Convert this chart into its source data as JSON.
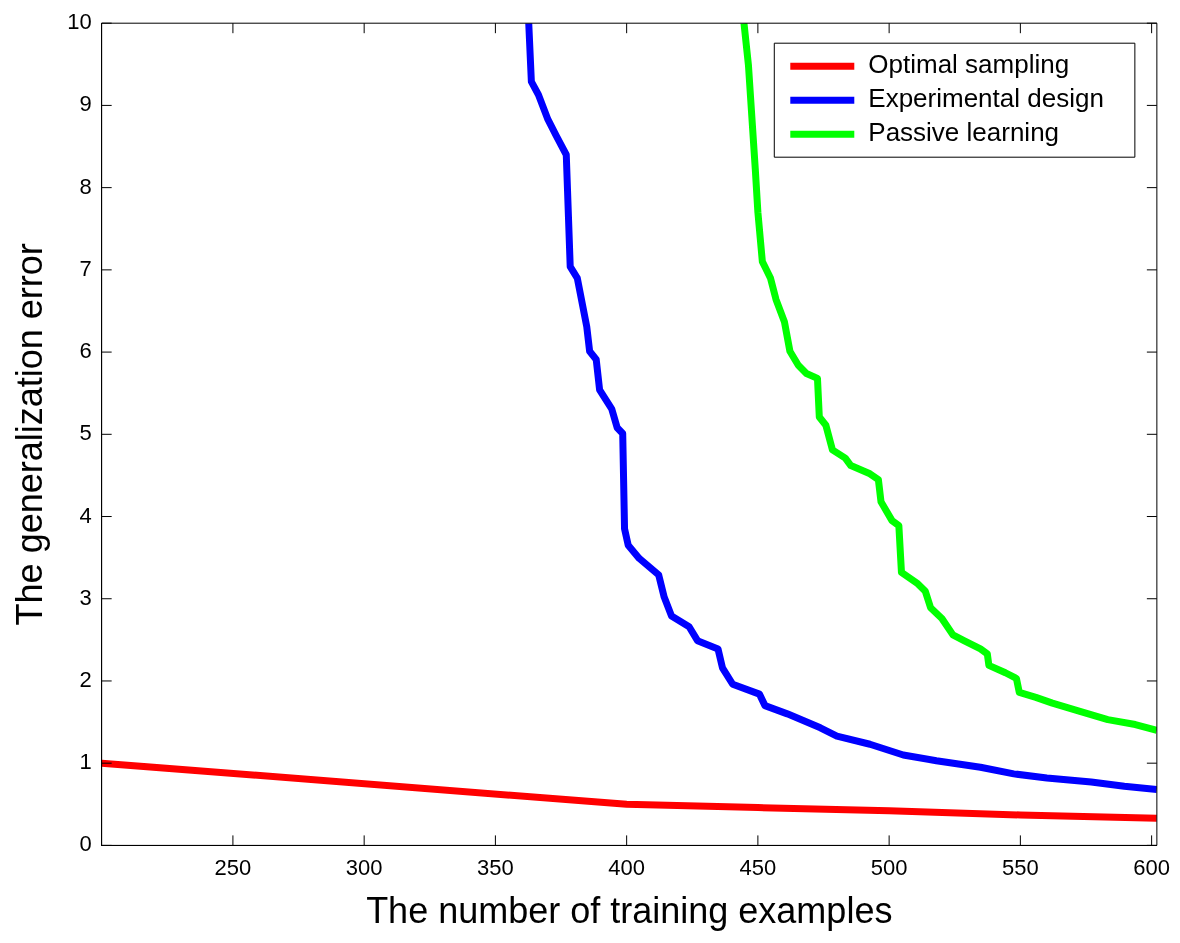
{
  "chart_data": {
    "type": "line",
    "xlabel": "The number of training examples",
    "ylabel": "The generalization error",
    "xlim": [
      200,
      602
    ],
    "xticks": [
      250,
      300,
      350,
      400,
      450,
      500,
      550,
      600
    ],
    "ylim": [
      0,
      10
    ],
    "yticks": [
      0,
      1,
      2,
      3,
      4,
      5,
      6,
      7,
      8,
      9,
      10
    ],
    "grid": false,
    "legend": "top right",
    "line_style": "solid",
    "marker": "none",
    "series": [
      {
        "name": "Optimal sampling",
        "color": "#ff0000",
        "x": [
          200,
          400,
          450,
          500,
          550,
          602
        ],
        "values": [
          1,
          0.5,
          0.46,
          0.42,
          0.37,
          0.33
        ]
      },
      {
        "name": "Experimental design",
        "color": "#0000ff",
        "x": [
          362.7,
          363.7,
          366.4,
          370,
          373.2,
          377,
          378.5,
          381.2,
          384.8,
          385.9,
          388.4,
          389.7,
          394.3,
          396.4,
          398.5,
          399.2,
          400.6,
          404.8,
          412.2,
          414.3,
          417.1,
          423.8,
          427,
          434.8,
          436.5,
          440.4,
          450.6,
          452.7,
          461.2,
          473.8,
          480.1,
          492.7,
          505.4,
          518,
          534.8,
          547.5,
          560.1,
          577,
          589.6,
          602
        ],
        "values": [
          10,
          9.29,
          9.13,
          8.83,
          8.63,
          8.4,
          7.04,
          6.9,
          6.31,
          6.01,
          5.91,
          5.54,
          5.31,
          5.08,
          5.01,
          3.85,
          3.65,
          3.49,
          3.29,
          3.02,
          2.79,
          2.66,
          2.49,
          2.39,
          2.16,
          1.96,
          1.84,
          1.7,
          1.6,
          1.43,
          1.33,
          1.23,
          1.1,
          1.03,
          0.95,
          0.87,
          0.82,
          0.77,
          0.72,
          0.68
        ]
      },
      {
        "name": "Passive learning",
        "color": "#00ff00",
        "x": [
          444.7,
          446.4,
          449,
          450,
          451.7,
          454.8,
          456.9,
          460.1,
          462.2,
          465.4,
          468.5,
          472.7,
          473.4,
          475.9,
          478.4,
          483.3,
          485.4,
          492.7,
          495.9,
          496.9,
          501.1,
          503.7,
          504.7,
          510.6,
          513.8,
          515.8,
          520.1,
          524.3,
          528.5,
          534.8,
          537.4,
          538,
          544.3,
          548.5,
          549.6,
          555.9,
          562.2,
          572.7,
          583.3,
          593.8,
          602
        ],
        "values": [
          10,
          9.49,
          8.23,
          7.7,
          7.1,
          6.9,
          6.64,
          6.37,
          6.01,
          5.84,
          5.74,
          5.68,
          5.21,
          5.11,
          4.81,
          4.71,
          4.62,
          4.52,
          4.45,
          4.18,
          3.95,
          3.89,
          3.32,
          3.19,
          3.09,
          2.89,
          2.76,
          2.56,
          2.49,
          2.39,
          2.33,
          2.19,
          2.1,
          2.03,
          1.86,
          1.8,
          1.73,
          1.63,
          1.53,
          1.47,
          1.4
        ]
      }
    ]
  }
}
